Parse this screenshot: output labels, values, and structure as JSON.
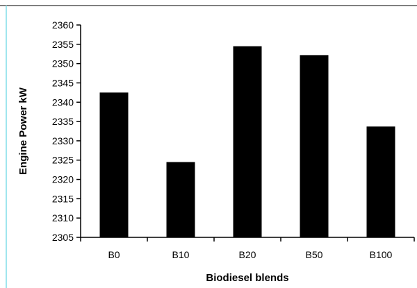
{
  "chart_data": {
    "type": "bar",
    "title": "",
    "xlabel": "Biodiesel blends",
    "ylabel": "Engine Power kW",
    "categories": [
      "B0",
      "B10",
      "B20",
      "B50",
      "B100"
    ],
    "values": [
      2342.5,
      2324.5,
      2354.5,
      2352.2,
      2333.7
    ],
    "ylim": [
      2305,
      2360
    ],
    "yticks": [
      2305,
      2310,
      2315,
      2320,
      2325,
      2330,
      2335,
      2340,
      2345,
      2350,
      2355,
      2360
    ],
    "grid": false,
    "legend": "none",
    "colors": {
      "bar": "#000000",
      "axis": "#000000",
      "background": "#ffffff"
    }
  }
}
